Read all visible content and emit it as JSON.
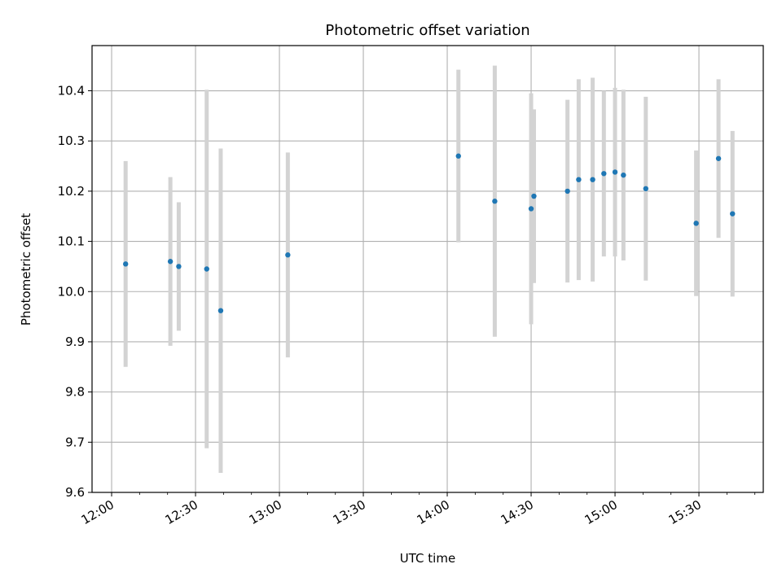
{
  "chart_data": {
    "type": "scatter",
    "title": "Photometric offset variation",
    "xlabel": "UTC time",
    "ylabel": "Photometric offset",
    "x_tick_labels": [
      "12:00",
      "12:30",
      "13:00",
      "13:30",
      "14:00",
      "14:30",
      "15:00",
      "15:30"
    ],
    "y_tick_labels": [
      "9.6",
      "9.7",
      "9.8",
      "9.9",
      "10.0",
      "10.1",
      "10.2",
      "10.3",
      "10.4"
    ],
    "xlim": [
      "11:53",
      "15:53"
    ],
    "ylim": [
      9.6,
      10.49
    ],
    "grid": true,
    "legend": "none",
    "colors": {
      "point": "#1f77b4",
      "errorbar": "#d3d3d3",
      "grid": "#b0b0b0"
    },
    "series": [
      {
        "points": [
          {
            "x": "12:05",
            "y": 10.055,
            "err": 0.205
          },
          {
            "x": "12:21",
            "y": 10.06,
            "err": 0.168
          },
          {
            "x": "12:24",
            "y": 10.05,
            "err": 0.128
          },
          {
            "x": "12:34",
            "y": 10.045,
            "err": 0.357
          },
          {
            "x": "12:39",
            "y": 9.962,
            "err": 0.323
          },
          {
            "x": "13:03",
            "y": 10.073,
            "err": 0.204
          },
          {
            "x": "14:04",
            "y": 10.27,
            "err": 0.172
          },
          {
            "x": "14:17",
            "y": 10.18,
            "err": 0.27
          },
          {
            "x": "14:30",
            "y": 10.165,
            "err": 0.23
          },
          {
            "x": "14:31",
            "y": 10.19,
            "err": 0.173
          },
          {
            "x": "14:43",
            "y": 10.2,
            "err": 0.182
          },
          {
            "x": "14:47",
            "y": 10.223,
            "err": 0.2
          },
          {
            "x": "14:52",
            "y": 10.223,
            "err": 0.203
          },
          {
            "x": "14:56",
            "y": 10.235,
            "err": 0.165
          },
          {
            "x": "15:00",
            "y": 10.238,
            "err": 0.168
          },
          {
            "x": "15:03",
            "y": 10.232,
            "err": 0.17
          },
          {
            "x": "15:11",
            "y": 10.205,
            "err": 0.183
          },
          {
            "x": "15:29",
            "y": 10.136,
            "err": 0.145
          },
          {
            "x": "15:37",
            "y": 10.265,
            "err": 0.158
          },
          {
            "x": "15:42",
            "y": 10.155,
            "err": 0.165
          }
        ]
      }
    ]
  }
}
